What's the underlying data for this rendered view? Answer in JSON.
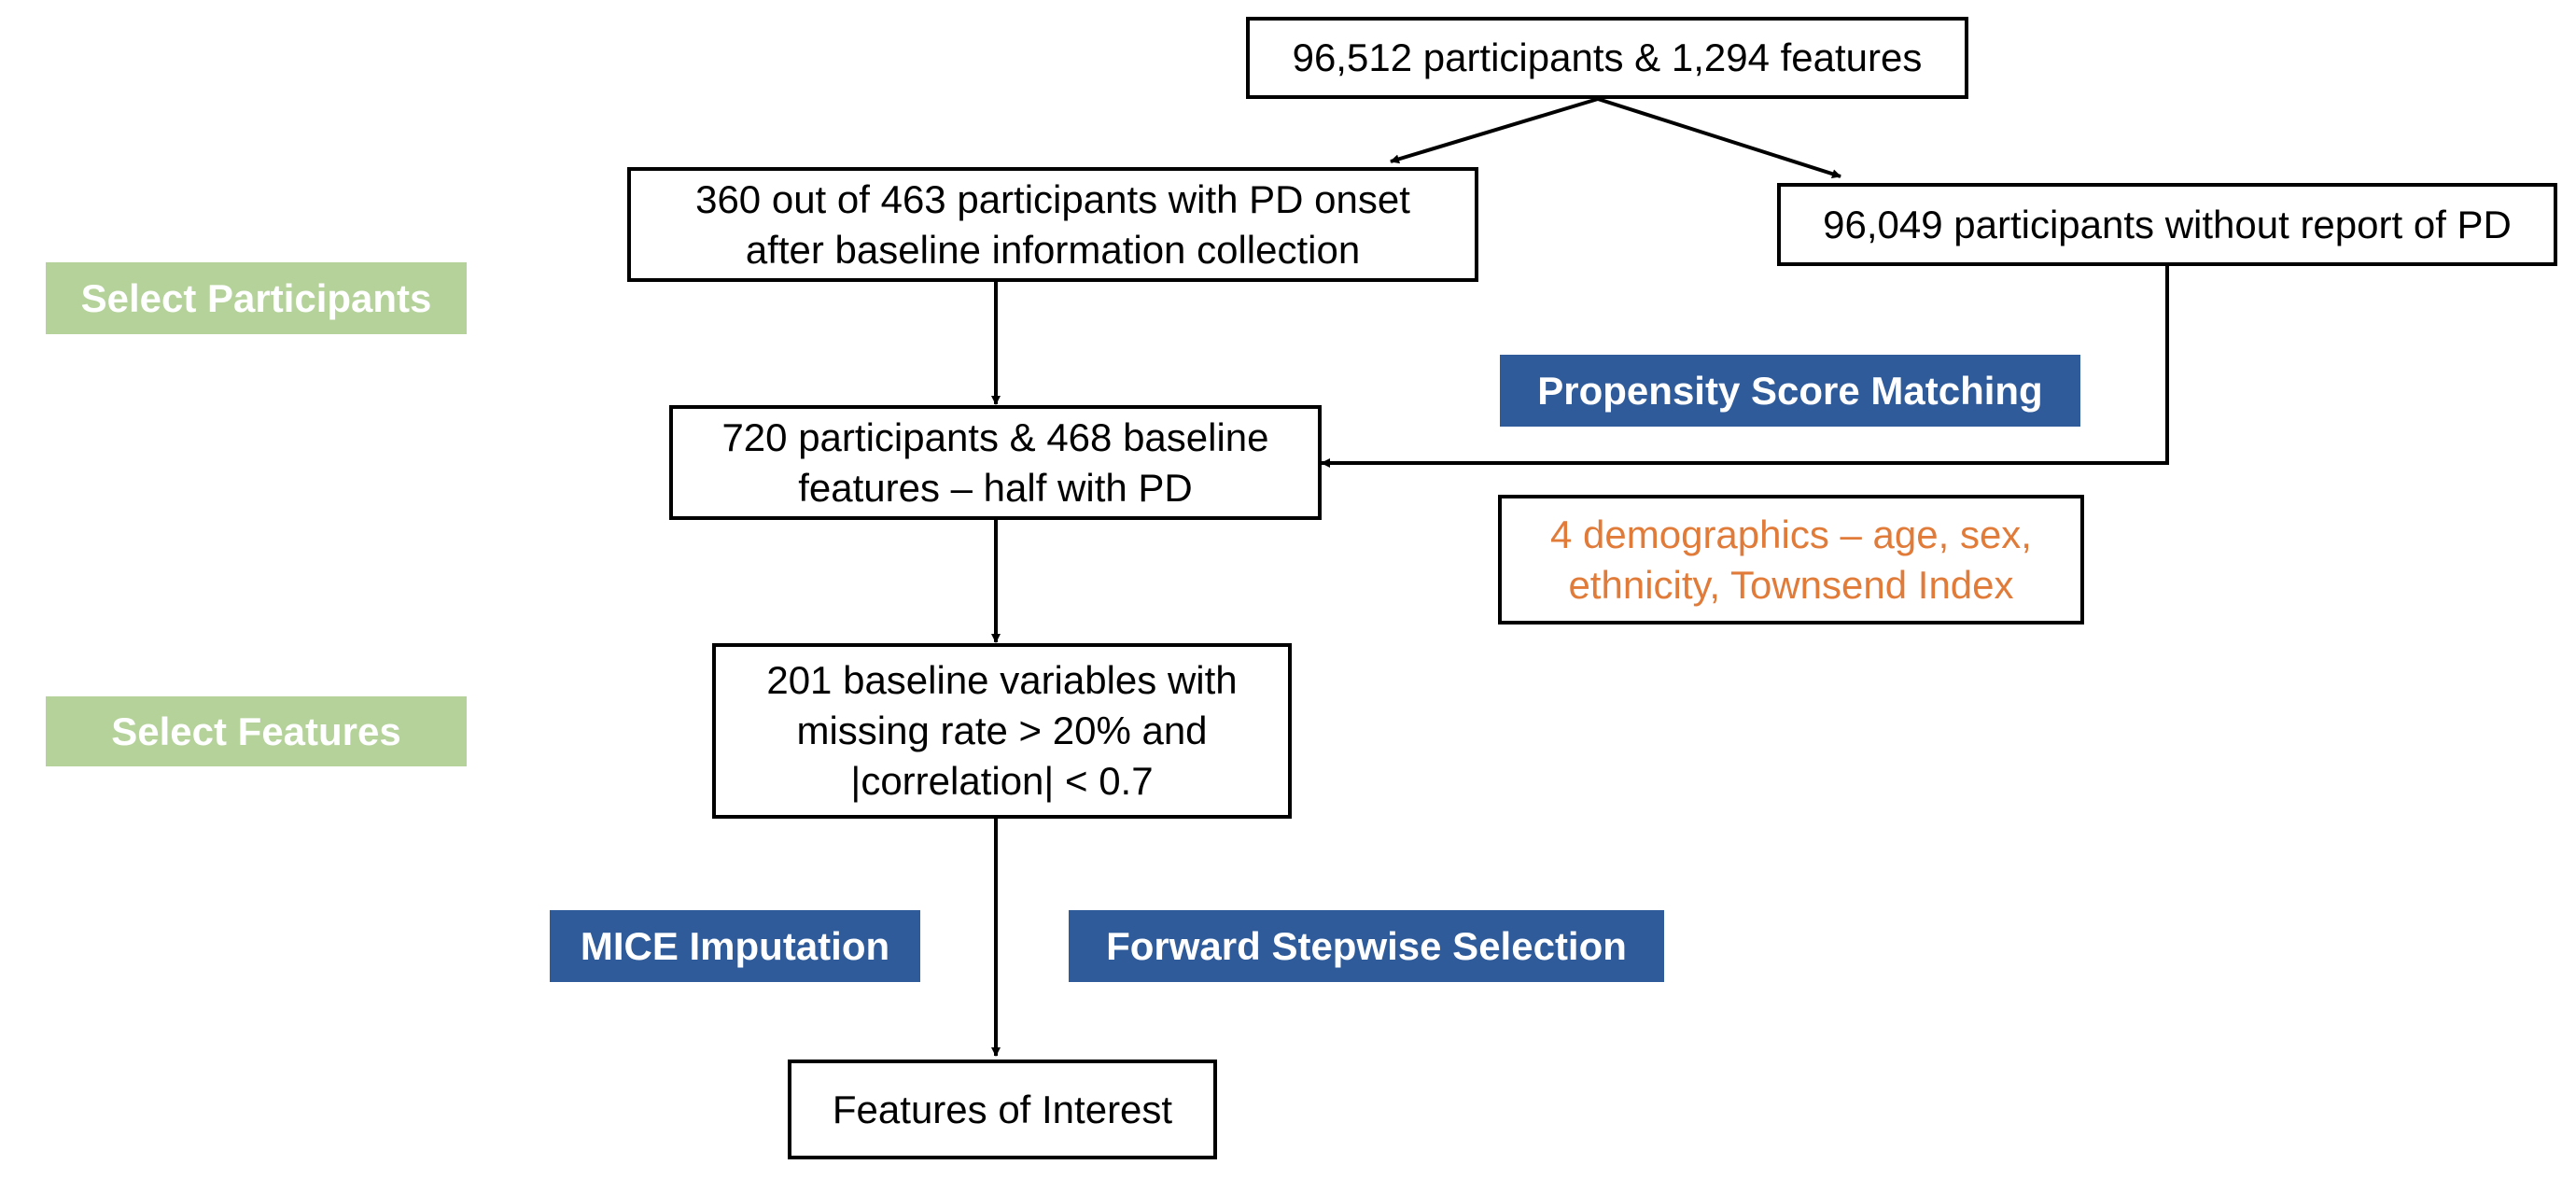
{
  "nodes": {
    "start": {
      "lines": [
        "96,512 participants & 1,294 features"
      ]
    },
    "pd_onset": {
      "lines": [
        "360 out of 463 participants with PD onset",
        "after baseline information collection"
      ]
    },
    "no_pd": {
      "lines": [
        "96,049 participants without report of PD"
      ]
    },
    "matched": {
      "lines": [
        "720 participants & 468 baseline",
        "features – half with PD"
      ]
    },
    "demographics": {
      "lines": [
        "4 demographics – age, sex,",
        "ethnicity, Townsend Index"
      ]
    },
    "baseline_vars": {
      "lines": [
        "201 baseline variables with",
        "missing rate > 20% and",
        "|correlation| < 0.7"
      ]
    },
    "features": {
      "lines": [
        "Features of Interest"
      ]
    }
  },
  "labels": {
    "select_participants": "Select Participants",
    "select_features": "Select Features",
    "propensity": "Propensity Score Matching",
    "mice": "MICE Imputation",
    "forward": "Forward Stepwise Selection"
  },
  "colors": {
    "green_label": "#b4d29a",
    "blue_label": "#2f5b9b",
    "orange_text": "#e07b39",
    "line": "#000000"
  }
}
